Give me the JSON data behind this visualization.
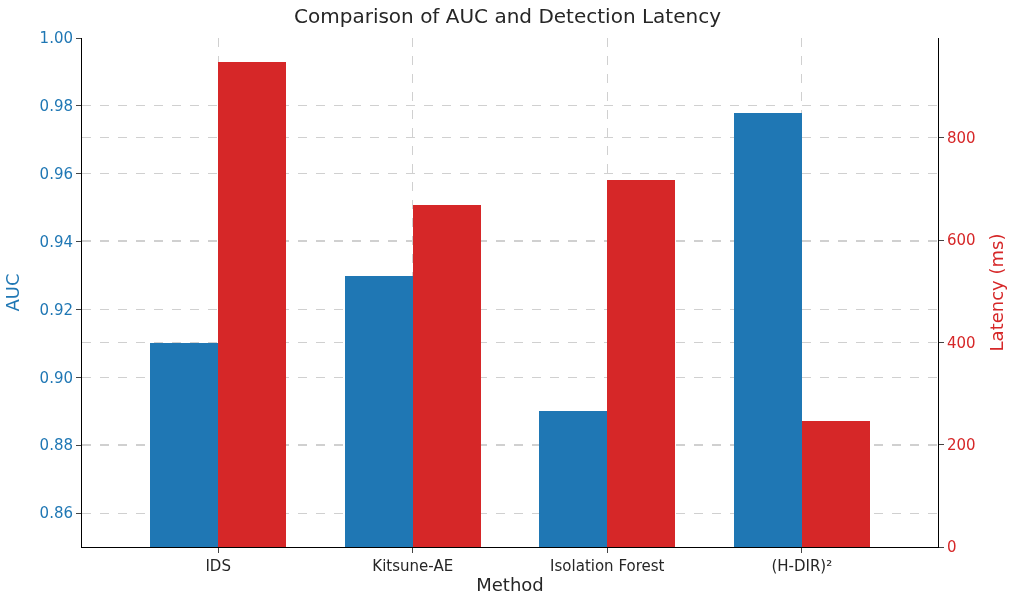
{
  "chart_data": {
    "type": "bar",
    "title": "Comparison of AUC and Detection Latency",
    "xlabel": "Method",
    "ylabel": "AUC",
    "y2label": "Latency (ms)",
    "categories": [
      "IDS",
      "Kitsune-AE",
      "Isolation Forest",
      "(H-DIR)²"
    ],
    "series": [
      {
        "color": "#1f77b4",
        "values": [
          0.91,
          0.93,
          0.89,
          0.978
        ]
      },
      {
        "color": "#d62728",
        "values": [
          948,
          668,
          718,
          246
        ],
        "axis": "y2"
      }
    ],
    "ylim": [
      0.85,
      1.0
    ],
    "yticks": [
      0.86,
      0.88,
      {
        "value": 0.9,
        "label": "0.90"
      },
      0.92,
      0.94,
      0.96,
      0.98,
      {
        "value": 1,
        "label": "1.00"
      }
    ],
    "y2lim": [
      0,
      995
    ],
    "y2ticks": [
      0,
      200,
      400,
      600,
      800
    ],
    "grid": true
  }
}
